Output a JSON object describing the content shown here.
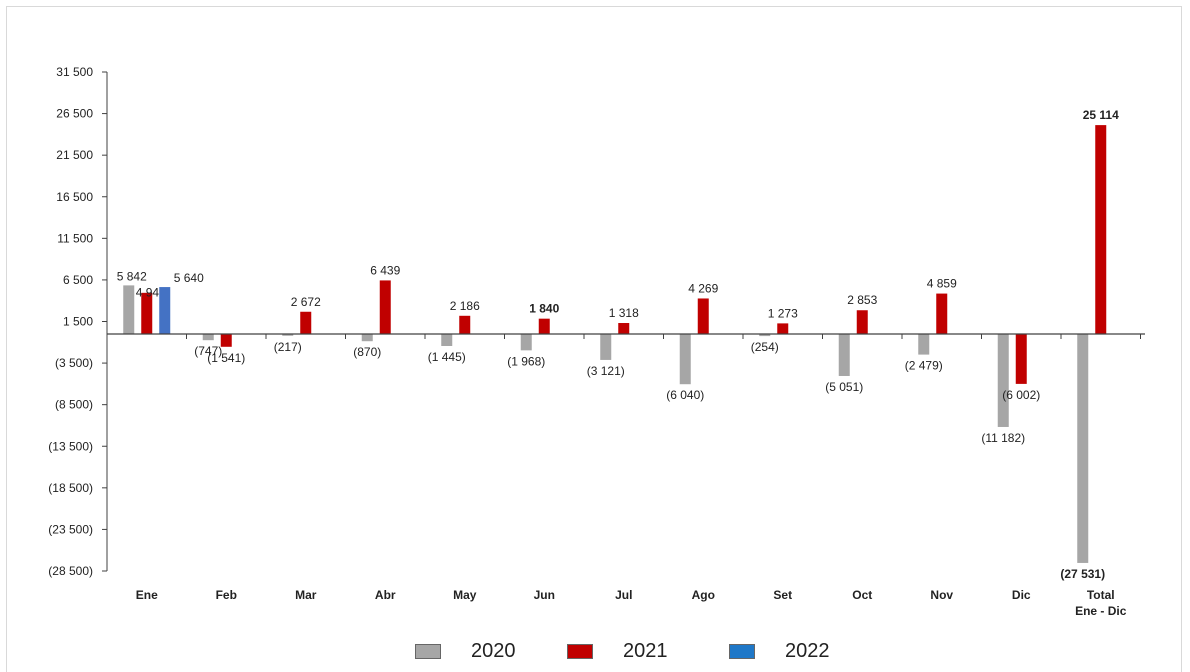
{
  "chart_data": {
    "type": "bar",
    "title": "",
    "xlabel": "",
    "ylabel": "",
    "ylim": [
      -28500,
      31500
    ],
    "yticks": [
      31500,
      26500,
      21500,
      16500,
      11500,
      6500,
      1500,
      -3500,
      -8500,
      -13500,
      -18500,
      -23500,
      -28500
    ],
    "ytick_labels": [
      "31 500",
      "26 500",
      "21 500",
      "16 500",
      "11 500",
      "6 500",
      "1 500",
      "(3 500)",
      "(8 500)",
      "(13 500)",
      "(18 500)",
      "(23 500)",
      "(28 500)"
    ],
    "categories": [
      "Ene",
      "Feb",
      "Mar",
      "Abr",
      "May",
      "Jun",
      "Jul",
      "Ago",
      "Set",
      "Oct",
      "Nov",
      "Dic",
      "Total Ene - Dic"
    ],
    "category_lines": [
      [
        "Ene"
      ],
      [
        "Feb"
      ],
      [
        "Mar"
      ],
      [
        "Abr"
      ],
      [
        "May"
      ],
      [
        "Jun"
      ],
      [
        "Jul"
      ],
      [
        "Ago"
      ],
      [
        "Set"
      ],
      [
        "Oct"
      ],
      [
        "Nov"
      ],
      [
        "Dic"
      ],
      [
        "Total",
        "Ene - Dic"
      ]
    ],
    "series": [
      {
        "name": "2020",
        "color": "#a6a6a6",
        "values": [
          5842,
          -747,
          -217,
          -870,
          -1445,
          -1968,
          -3121,
          -6040,
          -254,
          -5051,
          -2479,
          -11182,
          -27531
        ],
        "labels": [
          "5 842",
          "(747)",
          "(217)",
          "(870)",
          "(1 445)",
          "(1 968)",
          "(3 121)",
          "(6 040)",
          "(254)",
          "(5 051)",
          "(2 479)",
          "(11 182)",
          "(27 531)"
        ],
        "bold": [
          false,
          false,
          false,
          false,
          false,
          false,
          false,
          false,
          false,
          false,
          false,
          false,
          true
        ]
      },
      {
        "name": "2021",
        "color": "#c00000",
        "values": [
          4948,
          -1541,
          2672,
          6439,
          2186,
          1840,
          1318,
          4269,
          1273,
          2853,
          4859,
          -6002,
          25114
        ],
        "labels": [
          "4 948",
          "(1 541)",
          "2 672",
          "6 439",
          "2 186",
          "1 840",
          "1 318",
          "4 269",
          "1 273",
          "2 853",
          "4 859",
          "(6 002)",
          "25 114"
        ],
        "bold": [
          false,
          false,
          false,
          false,
          false,
          true,
          false,
          false,
          false,
          false,
          false,
          false,
          true
        ]
      },
      {
        "name": "2022",
        "color": "#4472c4",
        "values": [
          5640,
          null,
          null,
          null,
          null,
          null,
          null,
          null,
          null,
          null,
          null,
          null,
          null
        ],
        "labels": [
          "5 640",
          "",
          "",
          "",
          "",
          "",
          "",
          "",
          "",
          "",
          "",
          "",
          ""
        ],
        "bold": [
          false,
          false,
          false,
          false,
          false,
          false,
          false,
          false,
          false,
          false,
          false,
          false,
          false
        ]
      }
    ],
    "grid": false,
    "legend": "bottom"
  },
  "legend": {
    "items": [
      {
        "label": "2020",
        "color": "#a6a6a6"
      },
      {
        "label": "2021",
        "color": "#c00000"
      },
      {
        "label": "2022",
        "color": "#1f78c8"
      }
    ]
  }
}
